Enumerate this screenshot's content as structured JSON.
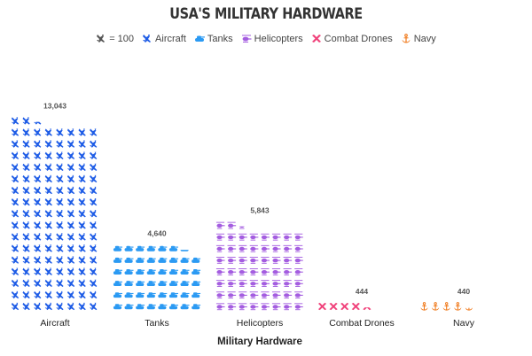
{
  "chart_data": {
    "type": "pictogram",
    "title": "USA'S MILITARY HARDWARE",
    "xlabel": "Military Hardware",
    "unit_label": "= 100",
    "unit_value": 100,
    "icons_per_row": 8,
    "categories": [
      "Aircraft",
      "Tanks",
      "Helicopters",
      "Combat Drones",
      "Navy"
    ],
    "values": [
      13043,
      4640,
      5843,
      444,
      440
    ],
    "value_labels": [
      "13,043",
      "4,640",
      "5,843",
      "444",
      "440"
    ],
    "icons": [
      "fighter-jet-icon",
      "tank-icon",
      "helicopter-icon",
      "drone-icon",
      "anchor-icon"
    ],
    "colors": [
      "#1e5ce6",
      "#2b9af3",
      "#a45de0",
      "#f0417a",
      "#f07a1c"
    ],
    "unit_icon_color": "#555555",
    "legend_placement": "top"
  }
}
